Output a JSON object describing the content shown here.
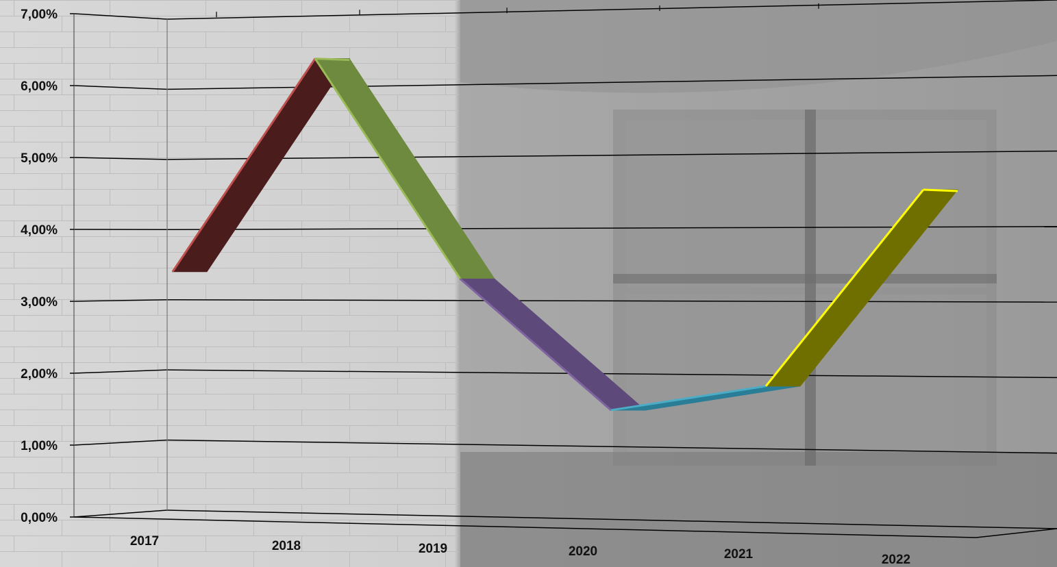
{
  "chart_data": {
    "type": "line",
    "style": "3d-ribbon",
    "title": "",
    "xlabel": "",
    "ylabel": "",
    "categories": [
      "2017",
      "2018",
      "2019",
      "2020",
      "2021",
      "2022"
    ],
    "series": [
      {
        "values": [
          3.4,
          6.4,
          3.3,
          1.5,
          1.85,
          4.5
        ]
      }
    ],
    "segment_colors": [
      "#4a1c1c",
      "#6e8a3e",
      "#5e4a7a",
      "#2a7d96",
      "#6f6f00"
    ],
    "segment_edge_colors": [
      "#c0504d",
      "#9bbb59",
      "#8064a2",
      "#4bacc6",
      "#ffff00"
    ],
    "ylim": [
      0,
      7
    ],
    "yticks": [
      "0,00%",
      "1,00%",
      "2,00%",
      "3,00%",
      "4,00%",
      "5,00%",
      "6,00%",
      "7,00%"
    ],
    "grid": true,
    "legend": "none",
    "background": "grayscale photo of a building facade"
  }
}
